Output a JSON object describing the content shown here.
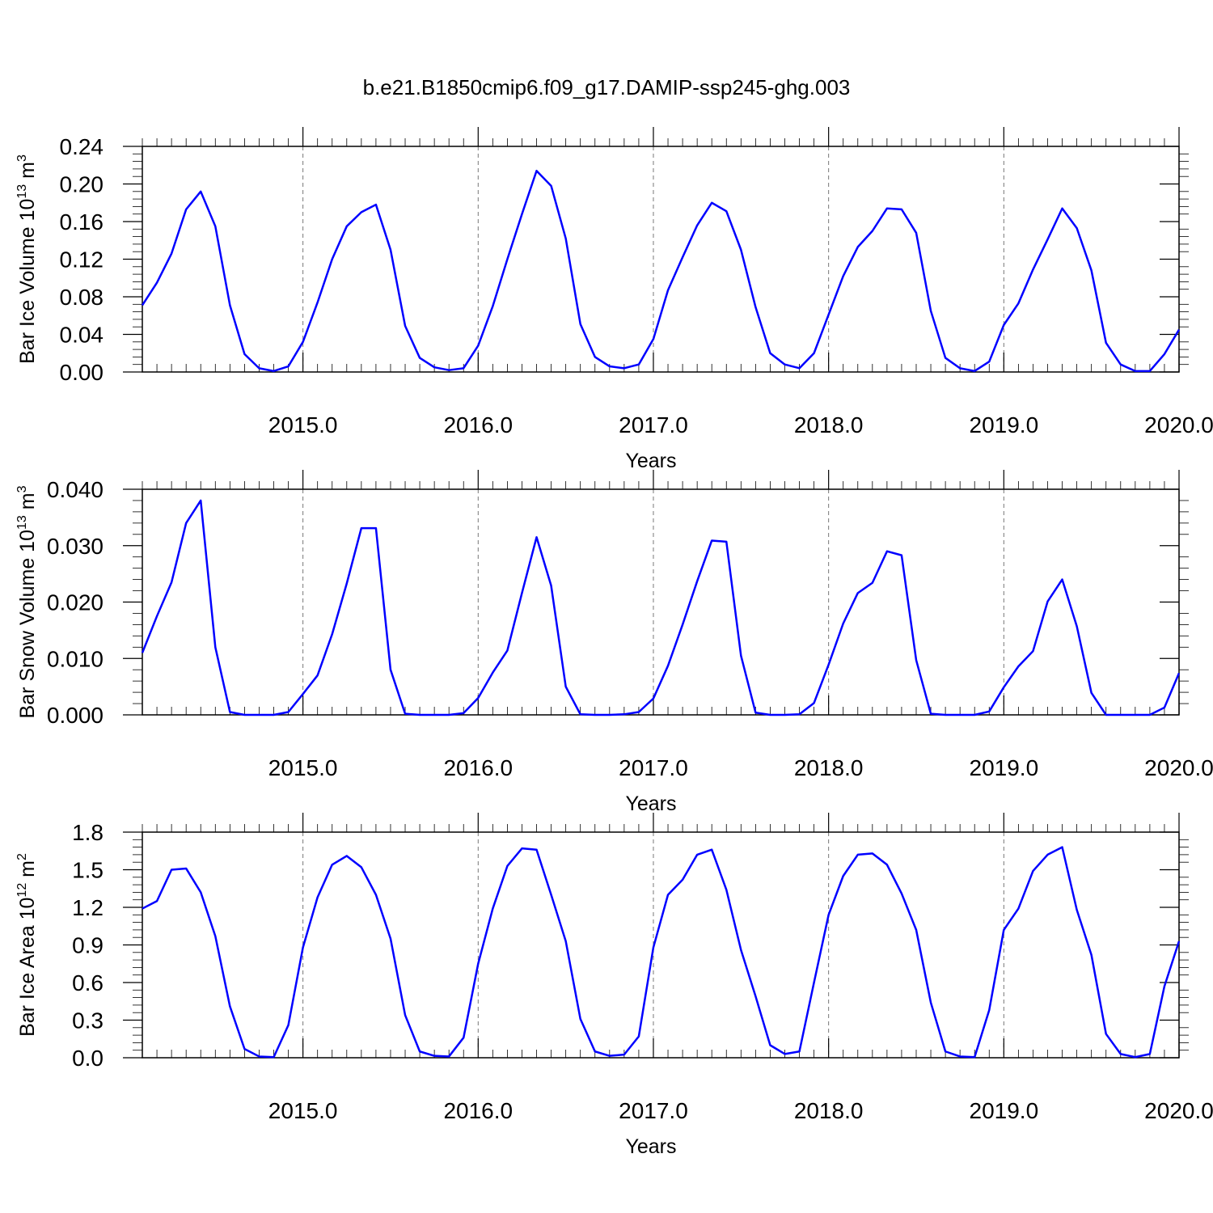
{
  "figure": {
    "title": "b.e21.B1850cmip6.f09_g17.DAMIP-ssp245-ghg.003",
    "line_color": "#0000ff"
  },
  "chart_data": [
    {
      "type": "line",
      "title": "",
      "xlabel": "Years",
      "ylabel": "Bar Ice Volume 10",
      "ylabel_exp": "13",
      "ylabel_unit": " m",
      "ylabel_unit_exp": "3",
      "xlim": [
        2014.0833,
        2020.0
      ],
      "ylim": [
        0.0,
        0.24
      ],
      "xticks": [
        2015.0,
        2016.0,
        2017.0,
        2018.0,
        2019.0,
        2020.0
      ],
      "xtick_labels": [
        "2015.0",
        "2016.0",
        "2017.0",
        "2018.0",
        "2019.0",
        "2020.0"
      ],
      "yticks": [
        0.0,
        0.04,
        0.08,
        0.12,
        0.16,
        0.2,
        0.24
      ],
      "ytick_labels": [
        "0.00",
        "0.04",
        "0.08",
        "0.12",
        "0.16",
        "0.20",
        "0.24"
      ],
      "grid": "vertical dashed at year marks",
      "x_start": 2014.0833,
      "x_step": 0.0833333,
      "values": [
        0.071,
        0.095,
        0.126,
        0.173,
        0.192,
        0.155,
        0.071,
        0.019,
        0.004,
        0.001,
        0.006,
        0.032,
        0.074,
        0.12,
        0.155,
        0.17,
        0.178,
        0.13,
        0.049,
        0.015,
        0.005,
        0.002,
        0.004,
        0.028,
        0.07,
        0.12,
        0.168,
        0.214,
        0.198,
        0.142,
        0.051,
        0.016,
        0.006,
        0.004,
        0.008,
        0.035,
        0.087,
        0.122,
        0.156,
        0.18,
        0.171,
        0.13,
        0.069,
        0.02,
        0.008,
        0.004,
        0.02,
        0.061,
        0.102,
        0.133,
        0.15,
        0.174,
        0.173,
        0.148,
        0.065,
        0.015,
        0.004,
        0.001,
        0.011,
        0.05,
        0.073,
        0.109,
        0.141,
        0.174,
        0.153,
        0.108,
        0.031,
        0.008,
        0.001,
        0.001,
        0.019,
        0.045
      ]
    },
    {
      "type": "line",
      "title": "",
      "xlabel": "Years",
      "ylabel": "Bar Snow Volume 10",
      "ylabel_exp": "13",
      "ylabel_unit": " m",
      "ylabel_unit_exp": "3",
      "xlim": [
        2014.0833,
        2020.0
      ],
      "ylim": [
        0.0,
        0.04
      ],
      "xticks": [
        2015.0,
        2016.0,
        2017.0,
        2018.0,
        2019.0,
        2020.0
      ],
      "xtick_labels": [
        "2015.0",
        "2016.0",
        "2017.0",
        "2018.0",
        "2019.0",
        "2020.0"
      ],
      "yticks": [
        0.0,
        0.01,
        0.02,
        0.03,
        0.04
      ],
      "ytick_labels": [
        "0.000",
        "0.010",
        "0.020",
        "0.030",
        "0.040"
      ],
      "grid": "vertical dashed at year marks",
      "x_start": 2014.0833,
      "x_step": 0.0833333,
      "values": [
        0.011,
        0.0175,
        0.0235,
        0.034,
        0.038,
        0.012,
        0.0005,
        0.0,
        0.0,
        0.0,
        0.0005,
        0.0037,
        0.007,
        0.0143,
        0.0233,
        0.0331,
        0.0331,
        0.008,
        0.0002,
        0.0,
        0.0,
        0.0,
        0.0003,
        0.003,
        0.0075,
        0.0114,
        0.0216,
        0.0315,
        0.0229,
        0.005,
        0.0001,
        0.0,
        0.0,
        0.0001,
        0.0005,
        0.0029,
        0.0087,
        0.016,
        0.0237,
        0.0309,
        0.0307,
        0.0105,
        0.0004,
        0.0,
        0.0,
        0.0001,
        0.0021,
        0.0089,
        0.0162,
        0.0216,
        0.0234,
        0.029,
        0.0283,
        0.0097,
        0.0002,
        0.0,
        0.0,
        0.0,
        0.0006,
        0.0049,
        0.0086,
        0.0113,
        0.0201,
        0.024,
        0.0157,
        0.0039,
        0.0,
        0.0,
        0.0,
        0.0,
        0.0013,
        0.0074
      ]
    },
    {
      "type": "line",
      "title": "",
      "xlabel": "Years",
      "ylabel": "Bar Ice Area 10",
      "ylabel_exp": "12",
      "ylabel_unit": " m",
      "ylabel_unit_exp": "2",
      "xlim": [
        2014.0833,
        2020.0
      ],
      "ylim": [
        0.0,
        1.8
      ],
      "xticks": [
        2015.0,
        2016.0,
        2017.0,
        2018.0,
        2019.0,
        2020.0
      ],
      "xtick_labels": [
        "2015.0",
        "2016.0",
        "2017.0",
        "2018.0",
        "2019.0",
        "2020.0"
      ],
      "yticks": [
        0.0,
        0.3,
        0.6,
        0.9,
        1.2,
        1.5,
        1.8
      ],
      "ytick_labels": [
        "0.0",
        "0.3",
        "0.6",
        "0.9",
        "1.2",
        "1.5",
        "1.8"
      ],
      "grid": "vertical dashed at year marks",
      "x_start": 2014.0833,
      "x_step": 0.0833333,
      "values": [
        1.19,
        1.25,
        1.5,
        1.51,
        1.32,
        0.97,
        0.41,
        0.07,
        0.01,
        0.005,
        0.26,
        0.88,
        1.28,
        1.54,
        1.61,
        1.52,
        1.3,
        0.95,
        0.34,
        0.05,
        0.015,
        0.01,
        0.16,
        0.75,
        1.19,
        1.53,
        1.67,
        1.66,
        1.3,
        0.93,
        0.31,
        0.05,
        0.015,
        0.025,
        0.17,
        0.88,
        1.3,
        1.42,
        1.62,
        1.66,
        1.34,
        0.86,
        0.49,
        0.1,
        0.03,
        0.05,
        0.6,
        1.14,
        1.45,
        1.62,
        1.63,
        1.54,
        1.31,
        1.02,
        0.44,
        0.05,
        0.01,
        0.005,
        0.38,
        1.02,
        1.19,
        1.49,
        1.62,
        1.68,
        1.18,
        0.82,
        0.19,
        0.03,
        0.005,
        0.03,
        0.57,
        0.93
      ]
    }
  ]
}
